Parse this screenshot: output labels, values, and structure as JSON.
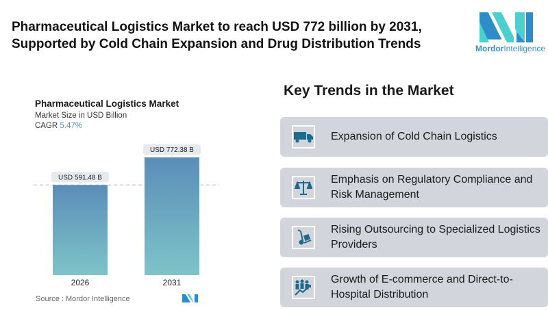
{
  "header": {
    "title_line1": "Pharmaceutical Logistics Market to reach USD 772 billion by 2031,",
    "title_line2": "Supported by Cold Chain Expansion and Drug Distribution Trends"
  },
  "logo": {
    "name_bold": "Mordor",
    "name_rest": "Intelligence"
  },
  "chart_data": {
    "type": "bar",
    "title": "Pharmaceutical Logistics Market",
    "subtitle": "Market Size in USD Billion",
    "cagr_label": "CAGR",
    "cagr_value": "5.47%",
    "categories": [
      "2026",
      "2031"
    ],
    "values": [
      591.48,
      772.38
    ],
    "data_labels": [
      "USD 591.48 B",
      "USD 772.38 B"
    ],
    "ylim": [
      0,
      772.38
    ],
    "grid": false,
    "bar_color_top": "#5b8db8",
    "bar_color_bottom": "#7ec4c8"
  },
  "source": "Source :  Mordor Intelligence",
  "trends": {
    "heading": "Key Trends in the Market",
    "items": [
      {
        "icon": "truck-icon",
        "text": "Expansion of Cold Chain Logistics"
      },
      {
        "icon": "scales-icon",
        "text": "Emphasis on Regulatory Compliance and Risk Management"
      },
      {
        "icon": "hand-truck-icon",
        "text": "Rising Outsourcing to Specialized Logistics Providers"
      },
      {
        "icon": "growth-people-icon",
        "text": "Growth of E-commerce and Direct-to-Hospital Distribution"
      }
    ]
  },
  "colors": {
    "accent": "#1e6a8d",
    "card_bg": "#d2d6dc"
  }
}
